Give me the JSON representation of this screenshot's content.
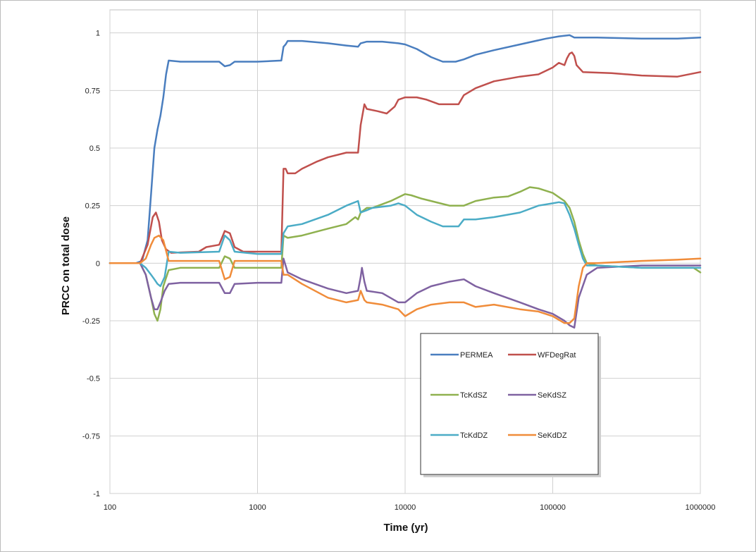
{
  "chart_data": {
    "type": "line",
    "title": "",
    "xlabel": "Time (yr)",
    "ylabel": "PRCC on total dose",
    "x_scale": "log",
    "xlim": [
      100,
      1000000
    ],
    "ylim": [
      -1,
      1.1
    ],
    "x_ticks": [
      100,
      1000,
      10000,
      100000,
      1000000
    ],
    "x_tick_labels": [
      "100",
      "1000",
      "10000",
      "100000",
      "1000000"
    ],
    "y_ticks": [
      1,
      0.75,
      0.5,
      0.25,
      0,
      -0.25,
      -0.5,
      -0.75,
      -1
    ],
    "y_tick_labels": [
      "1",
      "0.75",
      "0.5",
      "0.25",
      "0",
      "-0.25",
      "-0.5",
      "-0.75",
      "-1"
    ],
    "grid": true,
    "legend_position": "bottom-center",
    "series": [
      {
        "name": "PERMEA",
        "color": "#4a7ebf",
        "points": [
          [
            100,
            0
          ],
          [
            150,
            0
          ],
          [
            165,
            0.01
          ],
          [
            180,
            0.1
          ],
          [
            190,
            0.3
          ],
          [
            200,
            0.5
          ],
          [
            210,
            0.58
          ],
          [
            220,
            0.64
          ],
          [
            230,
            0.72
          ],
          [
            240,
            0.82
          ],
          [
            250,
            0.88
          ],
          [
            300,
            0.875
          ],
          [
            400,
            0.875
          ],
          [
            550,
            0.875
          ],
          [
            600,
            0.855
          ],
          [
            650,
            0.86
          ],
          [
            700,
            0.875
          ],
          [
            800,
            0.875
          ],
          [
            1000,
            0.875
          ],
          [
            1450,
            0.88
          ],
          [
            1500,
            0.94
          ],
          [
            1550,
            0.95
          ],
          [
            1600,
            0.965
          ],
          [
            2000,
            0.965
          ],
          [
            3000,
            0.955
          ],
          [
            4000,
            0.945
          ],
          [
            4800,
            0.94
          ],
          [
            5000,
            0.955
          ],
          [
            5500,
            0.962
          ],
          [
            7000,
            0.962
          ],
          [
            9000,
            0.955
          ],
          [
            10000,
            0.95
          ],
          [
            12000,
            0.93
          ],
          [
            15000,
            0.895
          ],
          [
            18000,
            0.875
          ],
          [
            22000,
            0.875
          ],
          [
            25000,
            0.885
          ],
          [
            30000,
            0.905
          ],
          [
            40000,
            0.925
          ],
          [
            60000,
            0.95
          ],
          [
            90000,
            0.975
          ],
          [
            110000,
            0.985
          ],
          [
            130000,
            0.99
          ],
          [
            140000,
            0.98
          ],
          [
            200000,
            0.98
          ],
          [
            400000,
            0.975
          ],
          [
            700000,
            0.975
          ],
          [
            1000000,
            0.98
          ]
        ]
      },
      {
        "name": "WFDegRat",
        "color": "#c0504d",
        "points": [
          [
            100,
            0
          ],
          [
            160,
            0
          ],
          [
            180,
            0.08
          ],
          [
            195,
            0.2
          ],
          [
            205,
            0.22
          ],
          [
            215,
            0.18
          ],
          [
            225,
            0.1
          ],
          [
            240,
            0.06
          ],
          [
            260,
            0.045
          ],
          [
            400,
            0.05
          ],
          [
            450,
            0.07
          ],
          [
            550,
            0.08
          ],
          [
            600,
            0.14
          ],
          [
            650,
            0.13
          ],
          [
            700,
            0.07
          ],
          [
            800,
            0.05
          ],
          [
            1000,
            0.05
          ],
          [
            1450,
            0.05
          ],
          [
            1500,
            0.41
          ],
          [
            1550,
            0.41
          ],
          [
            1600,
            0.39
          ],
          [
            1800,
            0.39
          ],
          [
            2000,
            0.41
          ],
          [
            2500,
            0.44
          ],
          [
            3000,
            0.46
          ],
          [
            4000,
            0.48
          ],
          [
            4800,
            0.48
          ],
          [
            5000,
            0.6
          ],
          [
            5300,
            0.69
          ],
          [
            5500,
            0.67
          ],
          [
            6500,
            0.66
          ],
          [
            7500,
            0.65
          ],
          [
            8500,
            0.68
          ],
          [
            9000,
            0.71
          ],
          [
            10000,
            0.72
          ],
          [
            12000,
            0.72
          ],
          [
            14000,
            0.71
          ],
          [
            17000,
            0.69
          ],
          [
            20000,
            0.69
          ],
          [
            23000,
            0.69
          ],
          [
            25000,
            0.73
          ],
          [
            30000,
            0.76
          ],
          [
            40000,
            0.79
          ],
          [
            60000,
            0.81
          ],
          [
            80000,
            0.82
          ],
          [
            100000,
            0.85
          ],
          [
            110000,
            0.87
          ],
          [
            120000,
            0.86
          ],
          [
            125000,
            0.89
          ],
          [
            130000,
            0.91
          ],
          [
            135000,
            0.915
          ],
          [
            140000,
            0.9
          ],
          [
            145000,
            0.86
          ],
          [
            160000,
            0.83
          ],
          [
            250000,
            0.825
          ],
          [
            400000,
            0.815
          ],
          [
            700000,
            0.81
          ],
          [
            1000000,
            0.83
          ]
        ]
      },
      {
        "name": "TcKdSZ",
        "color": "#8fb14f",
        "points": [
          [
            100,
            0
          ],
          [
            160,
            0
          ],
          [
            175,
            -0.05
          ],
          [
            190,
            -0.15
          ],
          [
            200,
            -0.22
          ],
          [
            210,
            -0.25
          ],
          [
            220,
            -0.2
          ],
          [
            230,
            -0.1
          ],
          [
            250,
            -0.03
          ],
          [
            300,
            -0.02
          ],
          [
            550,
            -0.02
          ],
          [
            600,
            0.03
          ],
          [
            650,
            0.02
          ],
          [
            700,
            -0.02
          ],
          [
            1000,
            -0.02
          ],
          [
            1450,
            -0.02
          ],
          [
            1500,
            0.12
          ],
          [
            1600,
            0.11
          ],
          [
            2000,
            0.12
          ],
          [
            3000,
            0.15
          ],
          [
            4000,
            0.17
          ],
          [
            4600,
            0.2
          ],
          [
            4800,
            0.19
          ],
          [
            5000,
            0.22
          ],
          [
            5500,
            0.24
          ],
          [
            6000,
            0.24
          ],
          [
            8000,
            0.27
          ],
          [
            10000,
            0.3
          ],
          [
            11000,
            0.295
          ],
          [
            13000,
            0.28
          ],
          [
            15000,
            0.27
          ],
          [
            20000,
            0.25
          ],
          [
            25000,
            0.25
          ],
          [
            30000,
            0.27
          ],
          [
            40000,
            0.285
          ],
          [
            50000,
            0.29
          ],
          [
            60000,
            0.31
          ],
          [
            70000,
            0.33
          ],
          [
            80000,
            0.325
          ],
          [
            100000,
            0.305
          ],
          [
            120000,
            0.27
          ],
          [
            130000,
            0.24
          ],
          [
            140000,
            0.18
          ],
          [
            150000,
            0.1
          ],
          [
            160000,
            0.04
          ],
          [
            170000,
            0.0
          ],
          [
            200000,
            -0.01
          ],
          [
            400000,
            -0.02
          ],
          [
            700000,
            -0.02
          ],
          [
            900000,
            -0.02
          ],
          [
            1000000,
            -0.04
          ]
        ]
      },
      {
        "name": "SeKdSZ",
        "color": "#7f62a1",
        "points": [
          [
            100,
            0
          ],
          [
            160,
            0
          ],
          [
            175,
            -0.05
          ],
          [
            190,
            -0.15
          ],
          [
            200,
            -0.2
          ],
          [
            210,
            -0.2
          ],
          [
            220,
            -0.17
          ],
          [
            235,
            -0.12
          ],
          [
            250,
            -0.09
          ],
          [
            300,
            -0.085
          ],
          [
            550,
            -0.085
          ],
          [
            600,
            -0.13
          ],
          [
            650,
            -0.13
          ],
          [
            700,
            -0.09
          ],
          [
            1000,
            -0.085
          ],
          [
            1450,
            -0.085
          ],
          [
            1500,
            0.02
          ],
          [
            1600,
            -0.04
          ],
          [
            2000,
            -0.07
          ],
          [
            3000,
            -0.11
          ],
          [
            4000,
            -0.13
          ],
          [
            4800,
            -0.12
          ],
          [
            5000,
            -0.06
          ],
          [
            5100,
            -0.02
          ],
          [
            5300,
            -0.08
          ],
          [
            5500,
            -0.12
          ],
          [
            7000,
            -0.13
          ],
          [
            9000,
            -0.17
          ],
          [
            10000,
            -0.17
          ],
          [
            12000,
            -0.13
          ],
          [
            15000,
            -0.1
          ],
          [
            20000,
            -0.08
          ],
          [
            25000,
            -0.07
          ],
          [
            30000,
            -0.1
          ],
          [
            40000,
            -0.13
          ],
          [
            60000,
            -0.17
          ],
          [
            80000,
            -0.2
          ],
          [
            100000,
            -0.22
          ],
          [
            120000,
            -0.25
          ],
          [
            130000,
            -0.27
          ],
          [
            140000,
            -0.28
          ],
          [
            150000,
            -0.15
          ],
          [
            170000,
            -0.05
          ],
          [
            200000,
            -0.02
          ],
          [
            400000,
            -0.01
          ],
          [
            700000,
            -0.01
          ],
          [
            1000000,
            -0.01
          ]
        ]
      },
      {
        "name": "TcKdDZ",
        "color": "#4bacc6",
        "points": [
          [
            100,
            0
          ],
          [
            160,
            0
          ],
          [
            175,
            -0.02
          ],
          [
            190,
            -0.05
          ],
          [
            200,
            -0.07
          ],
          [
            210,
            -0.09
          ],
          [
            220,
            -0.1
          ],
          [
            235,
            -0.06
          ],
          [
            250,
            0.05
          ],
          [
            300,
            0.045
          ],
          [
            550,
            0.05
          ],
          [
            600,
            0.12
          ],
          [
            650,
            0.1
          ],
          [
            700,
            0.05
          ],
          [
            1000,
            0.04
          ],
          [
            1450,
            0.04
          ],
          [
            1500,
            0.13
          ],
          [
            1600,
            0.16
          ],
          [
            2000,
            0.17
          ],
          [
            3000,
            0.21
          ],
          [
            4000,
            0.25
          ],
          [
            4800,
            0.27
          ],
          [
            5000,
            0.22
          ],
          [
            5500,
            0.23
          ],
          [
            6000,
            0.24
          ],
          [
            8000,
            0.25
          ],
          [
            9000,
            0.26
          ],
          [
            10000,
            0.25
          ],
          [
            12000,
            0.21
          ],
          [
            15000,
            0.18
          ],
          [
            18000,
            0.16
          ],
          [
            20000,
            0.16
          ],
          [
            23000,
            0.16
          ],
          [
            25000,
            0.19
          ],
          [
            30000,
            0.19
          ],
          [
            40000,
            0.2
          ],
          [
            60000,
            0.22
          ],
          [
            80000,
            0.25
          ],
          [
            100000,
            0.26
          ],
          [
            110000,
            0.265
          ],
          [
            120000,
            0.26
          ],
          [
            130000,
            0.21
          ],
          [
            140000,
            0.15
          ],
          [
            150000,
            0.08
          ],
          [
            160000,
            0.02
          ],
          [
            170000,
            -0.01
          ],
          [
            200000,
            -0.01
          ],
          [
            400000,
            -0.02
          ],
          [
            700000,
            -0.02
          ],
          [
            1000000,
            -0.02
          ]
        ]
      },
      {
        "name": "SeKdDZ",
        "color": "#f08c3a",
        "points": [
          [
            100,
            0
          ],
          [
            160,
            0
          ],
          [
            175,
            0.02
          ],
          [
            190,
            0.08
          ],
          [
            200,
            0.11
          ],
          [
            215,
            0.12
          ],
          [
            230,
            0.1
          ],
          [
            250,
            0.01
          ],
          [
            300,
            0.01
          ],
          [
            550,
            0.01
          ],
          [
            600,
            -0.07
          ],
          [
            650,
            -0.06
          ],
          [
            700,
            0.01
          ],
          [
            1000,
            0.01
          ],
          [
            1450,
            0.01
          ],
          [
            1500,
            -0.05
          ],
          [
            1600,
            -0.05
          ],
          [
            2000,
            -0.09
          ],
          [
            3000,
            -0.15
          ],
          [
            4000,
            -0.17
          ],
          [
            4800,
            -0.16
          ],
          [
            5000,
            -0.12
          ],
          [
            5300,
            -0.16
          ],
          [
            5500,
            -0.17
          ],
          [
            7000,
            -0.18
          ],
          [
            9000,
            -0.2
          ],
          [
            10000,
            -0.23
          ],
          [
            12000,
            -0.2
          ],
          [
            15000,
            -0.18
          ],
          [
            20000,
            -0.17
          ],
          [
            25000,
            -0.17
          ],
          [
            30000,
            -0.19
          ],
          [
            40000,
            -0.18
          ],
          [
            60000,
            -0.2
          ],
          [
            80000,
            -0.21
          ],
          [
            100000,
            -0.23
          ],
          [
            120000,
            -0.26
          ],
          [
            130000,
            -0.26
          ],
          [
            140000,
            -0.24
          ],
          [
            150000,
            -0.1
          ],
          [
            160000,
            -0.02
          ],
          [
            170000,
            0.0
          ],
          [
            200000,
            0.0
          ],
          [
            400000,
            0.01
          ],
          [
            700000,
            0.015
          ],
          [
            1000000,
            0.02
          ]
        ]
      }
    ]
  }
}
